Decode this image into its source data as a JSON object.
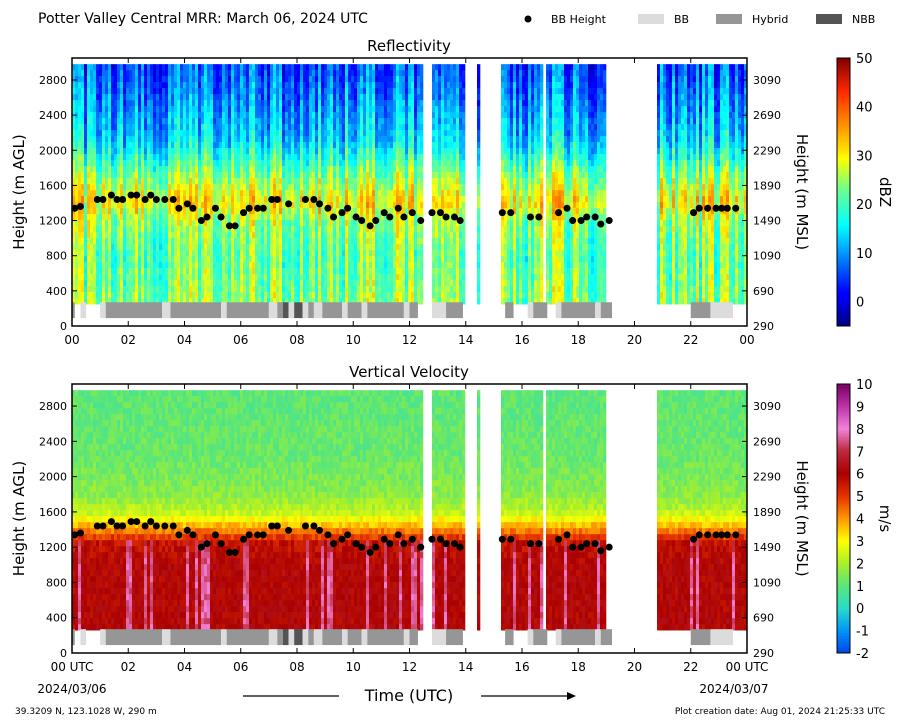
{
  "header": {
    "title": "Potter Valley Central MRR:  March 06, 2024 UTC"
  },
  "legend": {
    "items": [
      {
        "label": "BB Height",
        "kind": "dot",
        "color": "#000000"
      },
      {
        "label": "BB",
        "kind": "patch",
        "color": "#dcdcdc"
      },
      {
        "label": "Hybrid",
        "kind": "patch",
        "color": "#969696"
      },
      {
        "label": "NBB",
        "kind": "patch",
        "color": "#545454"
      }
    ]
  },
  "footer": {
    "location": "39.3209 N, 123.1028 W, 290 m",
    "creation_date": "Plot creation date: Aug 01, 2024 21:25:33 UTC",
    "start_date": "2024/03/06",
    "end_date": "2024/03/07",
    "xlabel": "Time (UTC)"
  },
  "chart_data": [
    {
      "type": "heatmap",
      "title": "Reflectivity",
      "xlabel": "Time (UTC)",
      "ylabel": "Height (m AGL)",
      "ylabel_right": "Height (m MSL)",
      "colorbar_label": "dBZ",
      "colorbar_range": [
        -5,
        50
      ],
      "colorbar_ticks": [
        "0",
        "10",
        "20",
        "30",
        "40",
        "50"
      ],
      "colorbar_tick_values": [
        0,
        10,
        20,
        30,
        40,
        50
      ],
      "colormap": "jet",
      "xlim": [
        0,
        24
      ],
      "ylim": [
        0,
        3050
      ],
      "x_ticks": [
        "00",
        "02",
        "04",
        "06",
        "08",
        "10",
        "12",
        "14",
        "16",
        "18",
        "20",
        "22",
        "00"
      ],
      "y_ticks": [
        "0",
        "400",
        "800",
        "1200",
        "1600",
        "2000",
        "2400",
        "2800"
      ],
      "y_ticks_right": [
        "290",
        "690",
        "1090",
        "1490",
        "1890",
        "2290",
        "2690",
        "3090"
      ],
      "data_extent_hours": [
        [
          0,
          12.5
        ],
        [
          12.8,
          14.0
        ],
        [
          14.4,
          14.5
        ],
        [
          15.3,
          16.7
        ],
        [
          16.9,
          19.0
        ],
        [
          20.8,
          24
        ]
      ],
      "field_ylim": [
        280,
        2980
      ],
      "profile_dbz": [
        [
          300,
          24
        ],
        [
          800,
          22
        ],
        [
          1200,
          25
        ],
        [
          1400,
          31
        ],
        [
          1700,
          24
        ],
        [
          2100,
          14
        ],
        [
          2600,
          9
        ],
        [
          2980,
          6
        ]
      ],
      "bright_band_height": {
        "x": [
          0.1,
          0.3,
          0.9,
          1.1,
          1.4,
          1.6,
          1.8,
          2.1,
          2.3,
          2.6,
          2.8,
          3.0,
          3.3,
          3.6,
          3.8,
          4.1,
          4.3,
          4.6,
          4.8,
          5.1,
          5.3,
          5.6,
          5.8,
          6.1,
          6.3,
          6.6,
          6.8,
          7.1,
          7.3,
          7.7,
          8.3,
          8.6,
          8.8,
          9.1,
          9.3,
          9.6,
          9.8,
          10.1,
          10.3,
          10.6,
          10.8,
          11.1,
          11.3,
          11.6,
          11.8,
          12.1,
          12.4,
          12.8,
          13.1,
          13.3,
          13.6,
          13.8,
          15.3,
          15.6,
          16.3,
          16.6,
          17.3,
          17.6,
          17.8,
          18.1,
          18.3,
          18.6,
          18.8,
          19.1,
          22.1,
          22.3,
          22.6,
          22.9,
          23.1,
          23.3,
          23.6
        ],
        "y": [
          1340,
          1360,
          1440,
          1440,
          1490,
          1440,
          1440,
          1490,
          1490,
          1440,
          1490,
          1440,
          1440,
          1440,
          1340,
          1390,
          1340,
          1200,
          1240,
          1340,
          1240,
          1140,
          1140,
          1290,
          1340,
          1340,
          1340,
          1440,
          1440,
          1390,
          1440,
          1440,
          1390,
          1340,
          1240,
          1290,
          1340,
          1240,
          1200,
          1140,
          1200,
          1290,
          1240,
          1340,
          1240,
          1290,
          1200,
          1290,
          1290,
          1240,
          1240,
          1200,
          1290,
          1290,
          1240,
          1240,
          1290,
          1340,
          1200,
          1200,
          1240,
          1240,
          1160,
          1200,
          1290,
          1340,
          1340,
          1340,
          1340,
          1340,
          1340
        ]
      },
      "bb_type_bar": {
        "y_range": [
          90,
          270
        ],
        "segments": [
          {
            "start": 0.0,
            "end": 0.1,
            "type": "Hybrid"
          },
          {
            "start": 0.3,
            "end": 0.5,
            "type": "BB"
          },
          {
            "start": 1.0,
            "end": 1.2,
            "type": "BB"
          },
          {
            "start": 1.2,
            "end": 3.2,
            "type": "Hybrid"
          },
          {
            "start": 3.2,
            "end": 3.5,
            "type": "BB"
          },
          {
            "start": 3.5,
            "end": 5.3,
            "type": "Hybrid"
          },
          {
            "start": 5.3,
            "end": 5.5,
            "type": "BB"
          },
          {
            "start": 5.5,
            "end": 7.0,
            "type": "Hybrid"
          },
          {
            "start": 7.0,
            "end": 7.3,
            "type": "BB"
          },
          {
            "start": 7.3,
            "end": 7.5,
            "type": "Hybrid"
          },
          {
            "start": 7.5,
            "end": 7.7,
            "type": "NBB"
          },
          {
            "start": 7.7,
            "end": 7.9,
            "type": "BB"
          },
          {
            "start": 7.9,
            "end": 8.2,
            "type": "NBB"
          },
          {
            "start": 8.2,
            "end": 8.4,
            "type": "BB"
          },
          {
            "start": 8.4,
            "end": 8.6,
            "type": "Hybrid"
          },
          {
            "start": 8.6,
            "end": 8.9,
            "type": "BB"
          },
          {
            "start": 8.9,
            "end": 9.6,
            "type": "Hybrid"
          },
          {
            "start": 9.6,
            "end": 9.8,
            "type": "BB"
          },
          {
            "start": 9.8,
            "end": 10.3,
            "type": "Hybrid"
          },
          {
            "start": 10.3,
            "end": 10.5,
            "type": "BB"
          },
          {
            "start": 10.5,
            "end": 11.8,
            "type": "Hybrid"
          },
          {
            "start": 11.8,
            "end": 12.0,
            "type": "BB"
          },
          {
            "start": 12.0,
            "end": 12.3,
            "type": "Hybrid"
          },
          {
            "start": 12.8,
            "end": 13.3,
            "type": "BB"
          },
          {
            "start": 13.3,
            "end": 13.9,
            "type": "Hybrid"
          },
          {
            "start": 15.4,
            "end": 15.7,
            "type": "Hybrid"
          },
          {
            "start": 16.2,
            "end": 16.4,
            "type": "BB"
          },
          {
            "start": 16.4,
            "end": 16.9,
            "type": "Hybrid"
          },
          {
            "start": 17.2,
            "end": 17.4,
            "type": "BB"
          },
          {
            "start": 17.4,
            "end": 18.6,
            "type": "Hybrid"
          },
          {
            "start": 18.6,
            "end": 18.8,
            "type": "BB"
          },
          {
            "start": 18.8,
            "end": 19.2,
            "type": "Hybrid"
          },
          {
            "start": 22.0,
            "end": 22.7,
            "type": "Hybrid"
          },
          {
            "start": 22.7,
            "end": 23.5,
            "type": "BB"
          }
        ]
      }
    },
    {
      "type": "heatmap",
      "title": "Vertical Velocity",
      "xlabel": "Time (UTC)",
      "ylabel": "Height (m AGL)",
      "ylabel_right": "Height (m MSL)",
      "colorbar_label": "m/s",
      "colorbar_range": [
        -2,
        10
      ],
      "colorbar_ticks": [
        "-2",
        "-1",
        "0",
        "1",
        "2",
        "3",
        "4",
        "5",
        "6",
        "7",
        "8",
        "9",
        "10"
      ],
      "colorbar_tick_values": [
        -2,
        -1,
        0,
        1,
        2,
        3,
        4,
        5,
        6,
        7,
        8,
        9,
        10
      ],
      "colormap": "velocity",
      "xlim": [
        0,
        24
      ],
      "ylim": [
        0,
        3050
      ],
      "x_ticks": [
        "00 UTC",
        "02",
        "04",
        "06",
        "08",
        "10",
        "12",
        "14",
        "16",
        "18",
        "20",
        "22",
        "00 UTC"
      ],
      "y_ticks": [
        "0",
        "400",
        "800",
        "1200",
        "1600",
        "2000",
        "2400",
        "2800"
      ],
      "y_ticks_right": [
        "290",
        "690",
        "1090",
        "1490",
        "1890",
        "2290",
        "2690",
        "3090"
      ],
      "data_extent_hours": [
        [
          0,
          12.5
        ],
        [
          12.8,
          14.0
        ],
        [
          14.4,
          14.5
        ],
        [
          15.3,
          16.7
        ],
        [
          16.9,
          19.0
        ],
        [
          20.8,
          24
        ]
      ],
      "field_ylim": [
        280,
        2980
      ],
      "profile_velocity": [
        [
          300,
          6.0
        ],
        [
          1000,
          6.0
        ],
        [
          1250,
          5.6
        ],
        [
          1450,
          3.6
        ],
        [
          1600,
          2.2
        ],
        [
          1800,
          1.6
        ],
        [
          2200,
          1.2
        ],
        [
          2980,
          1.0
        ]
      ],
      "bright_band_height": {
        "x": [
          0.1,
          0.3,
          0.9,
          1.1,
          1.4,
          1.6,
          1.8,
          2.1,
          2.3,
          2.6,
          2.8,
          3.0,
          3.3,
          3.6,
          3.8,
          4.1,
          4.3,
          4.6,
          4.8,
          5.1,
          5.3,
          5.6,
          5.8,
          6.1,
          6.3,
          6.6,
          6.8,
          7.1,
          7.3,
          7.7,
          8.3,
          8.6,
          8.8,
          9.1,
          9.3,
          9.6,
          9.8,
          10.1,
          10.3,
          10.6,
          10.8,
          11.1,
          11.3,
          11.6,
          11.8,
          12.1,
          12.4,
          12.8,
          13.1,
          13.3,
          13.6,
          13.8,
          15.3,
          15.6,
          16.3,
          16.6,
          17.3,
          17.6,
          17.8,
          18.1,
          18.3,
          18.6,
          18.8,
          19.1,
          22.1,
          22.3,
          22.6,
          22.9,
          23.1,
          23.3,
          23.6
        ],
        "y": [
          1340,
          1360,
          1440,
          1440,
          1490,
          1440,
          1440,
          1490,
          1490,
          1440,
          1490,
          1440,
          1440,
          1440,
          1340,
          1390,
          1340,
          1200,
          1240,
          1340,
          1240,
          1140,
          1140,
          1290,
          1340,
          1340,
          1340,
          1440,
          1440,
          1390,
          1440,
          1440,
          1390,
          1340,
          1240,
          1290,
          1340,
          1240,
          1200,
          1140,
          1200,
          1290,
          1240,
          1340,
          1240,
          1290,
          1200,
          1290,
          1290,
          1240,
          1240,
          1200,
          1290,
          1290,
          1240,
          1240,
          1290,
          1340,
          1200,
          1200,
          1240,
          1240,
          1160,
          1200,
          1290,
          1340,
          1340,
          1340,
          1340,
          1340,
          1340
        ]
      },
      "bb_type_bar": {
        "y_range": [
          90,
          270
        ],
        "segments": [
          {
            "start": 0.0,
            "end": 0.1,
            "type": "Hybrid"
          },
          {
            "start": 0.3,
            "end": 0.5,
            "type": "BB"
          },
          {
            "start": 1.0,
            "end": 1.2,
            "type": "BB"
          },
          {
            "start": 1.2,
            "end": 3.2,
            "type": "Hybrid"
          },
          {
            "start": 3.2,
            "end": 3.5,
            "type": "BB"
          },
          {
            "start": 3.5,
            "end": 5.3,
            "type": "Hybrid"
          },
          {
            "start": 5.3,
            "end": 5.5,
            "type": "BB"
          },
          {
            "start": 5.5,
            "end": 7.0,
            "type": "Hybrid"
          },
          {
            "start": 7.0,
            "end": 7.3,
            "type": "BB"
          },
          {
            "start": 7.3,
            "end": 7.5,
            "type": "Hybrid"
          },
          {
            "start": 7.5,
            "end": 7.7,
            "type": "NBB"
          },
          {
            "start": 7.7,
            "end": 7.9,
            "type": "BB"
          },
          {
            "start": 7.9,
            "end": 8.2,
            "type": "NBB"
          },
          {
            "start": 8.2,
            "end": 8.4,
            "type": "BB"
          },
          {
            "start": 8.4,
            "end": 8.6,
            "type": "Hybrid"
          },
          {
            "start": 8.6,
            "end": 8.9,
            "type": "BB"
          },
          {
            "start": 8.9,
            "end": 9.6,
            "type": "Hybrid"
          },
          {
            "start": 9.6,
            "end": 9.8,
            "type": "BB"
          },
          {
            "start": 9.8,
            "end": 10.3,
            "type": "Hybrid"
          },
          {
            "start": 10.3,
            "end": 10.5,
            "type": "BB"
          },
          {
            "start": 10.5,
            "end": 11.8,
            "type": "Hybrid"
          },
          {
            "start": 11.8,
            "end": 12.0,
            "type": "BB"
          },
          {
            "start": 12.0,
            "end": 12.3,
            "type": "Hybrid"
          },
          {
            "start": 12.8,
            "end": 13.3,
            "type": "BB"
          },
          {
            "start": 13.3,
            "end": 13.9,
            "type": "Hybrid"
          },
          {
            "start": 15.4,
            "end": 15.7,
            "type": "Hybrid"
          },
          {
            "start": 16.2,
            "end": 16.4,
            "type": "BB"
          },
          {
            "start": 16.4,
            "end": 16.9,
            "type": "Hybrid"
          },
          {
            "start": 17.2,
            "end": 17.4,
            "type": "BB"
          },
          {
            "start": 17.4,
            "end": 18.6,
            "type": "Hybrid"
          },
          {
            "start": 18.6,
            "end": 18.8,
            "type": "BB"
          },
          {
            "start": 18.8,
            "end": 19.2,
            "type": "Hybrid"
          },
          {
            "start": 22.0,
            "end": 22.7,
            "type": "Hybrid"
          },
          {
            "start": 22.7,
            "end": 23.5,
            "type": "BB"
          }
        ]
      }
    }
  ]
}
